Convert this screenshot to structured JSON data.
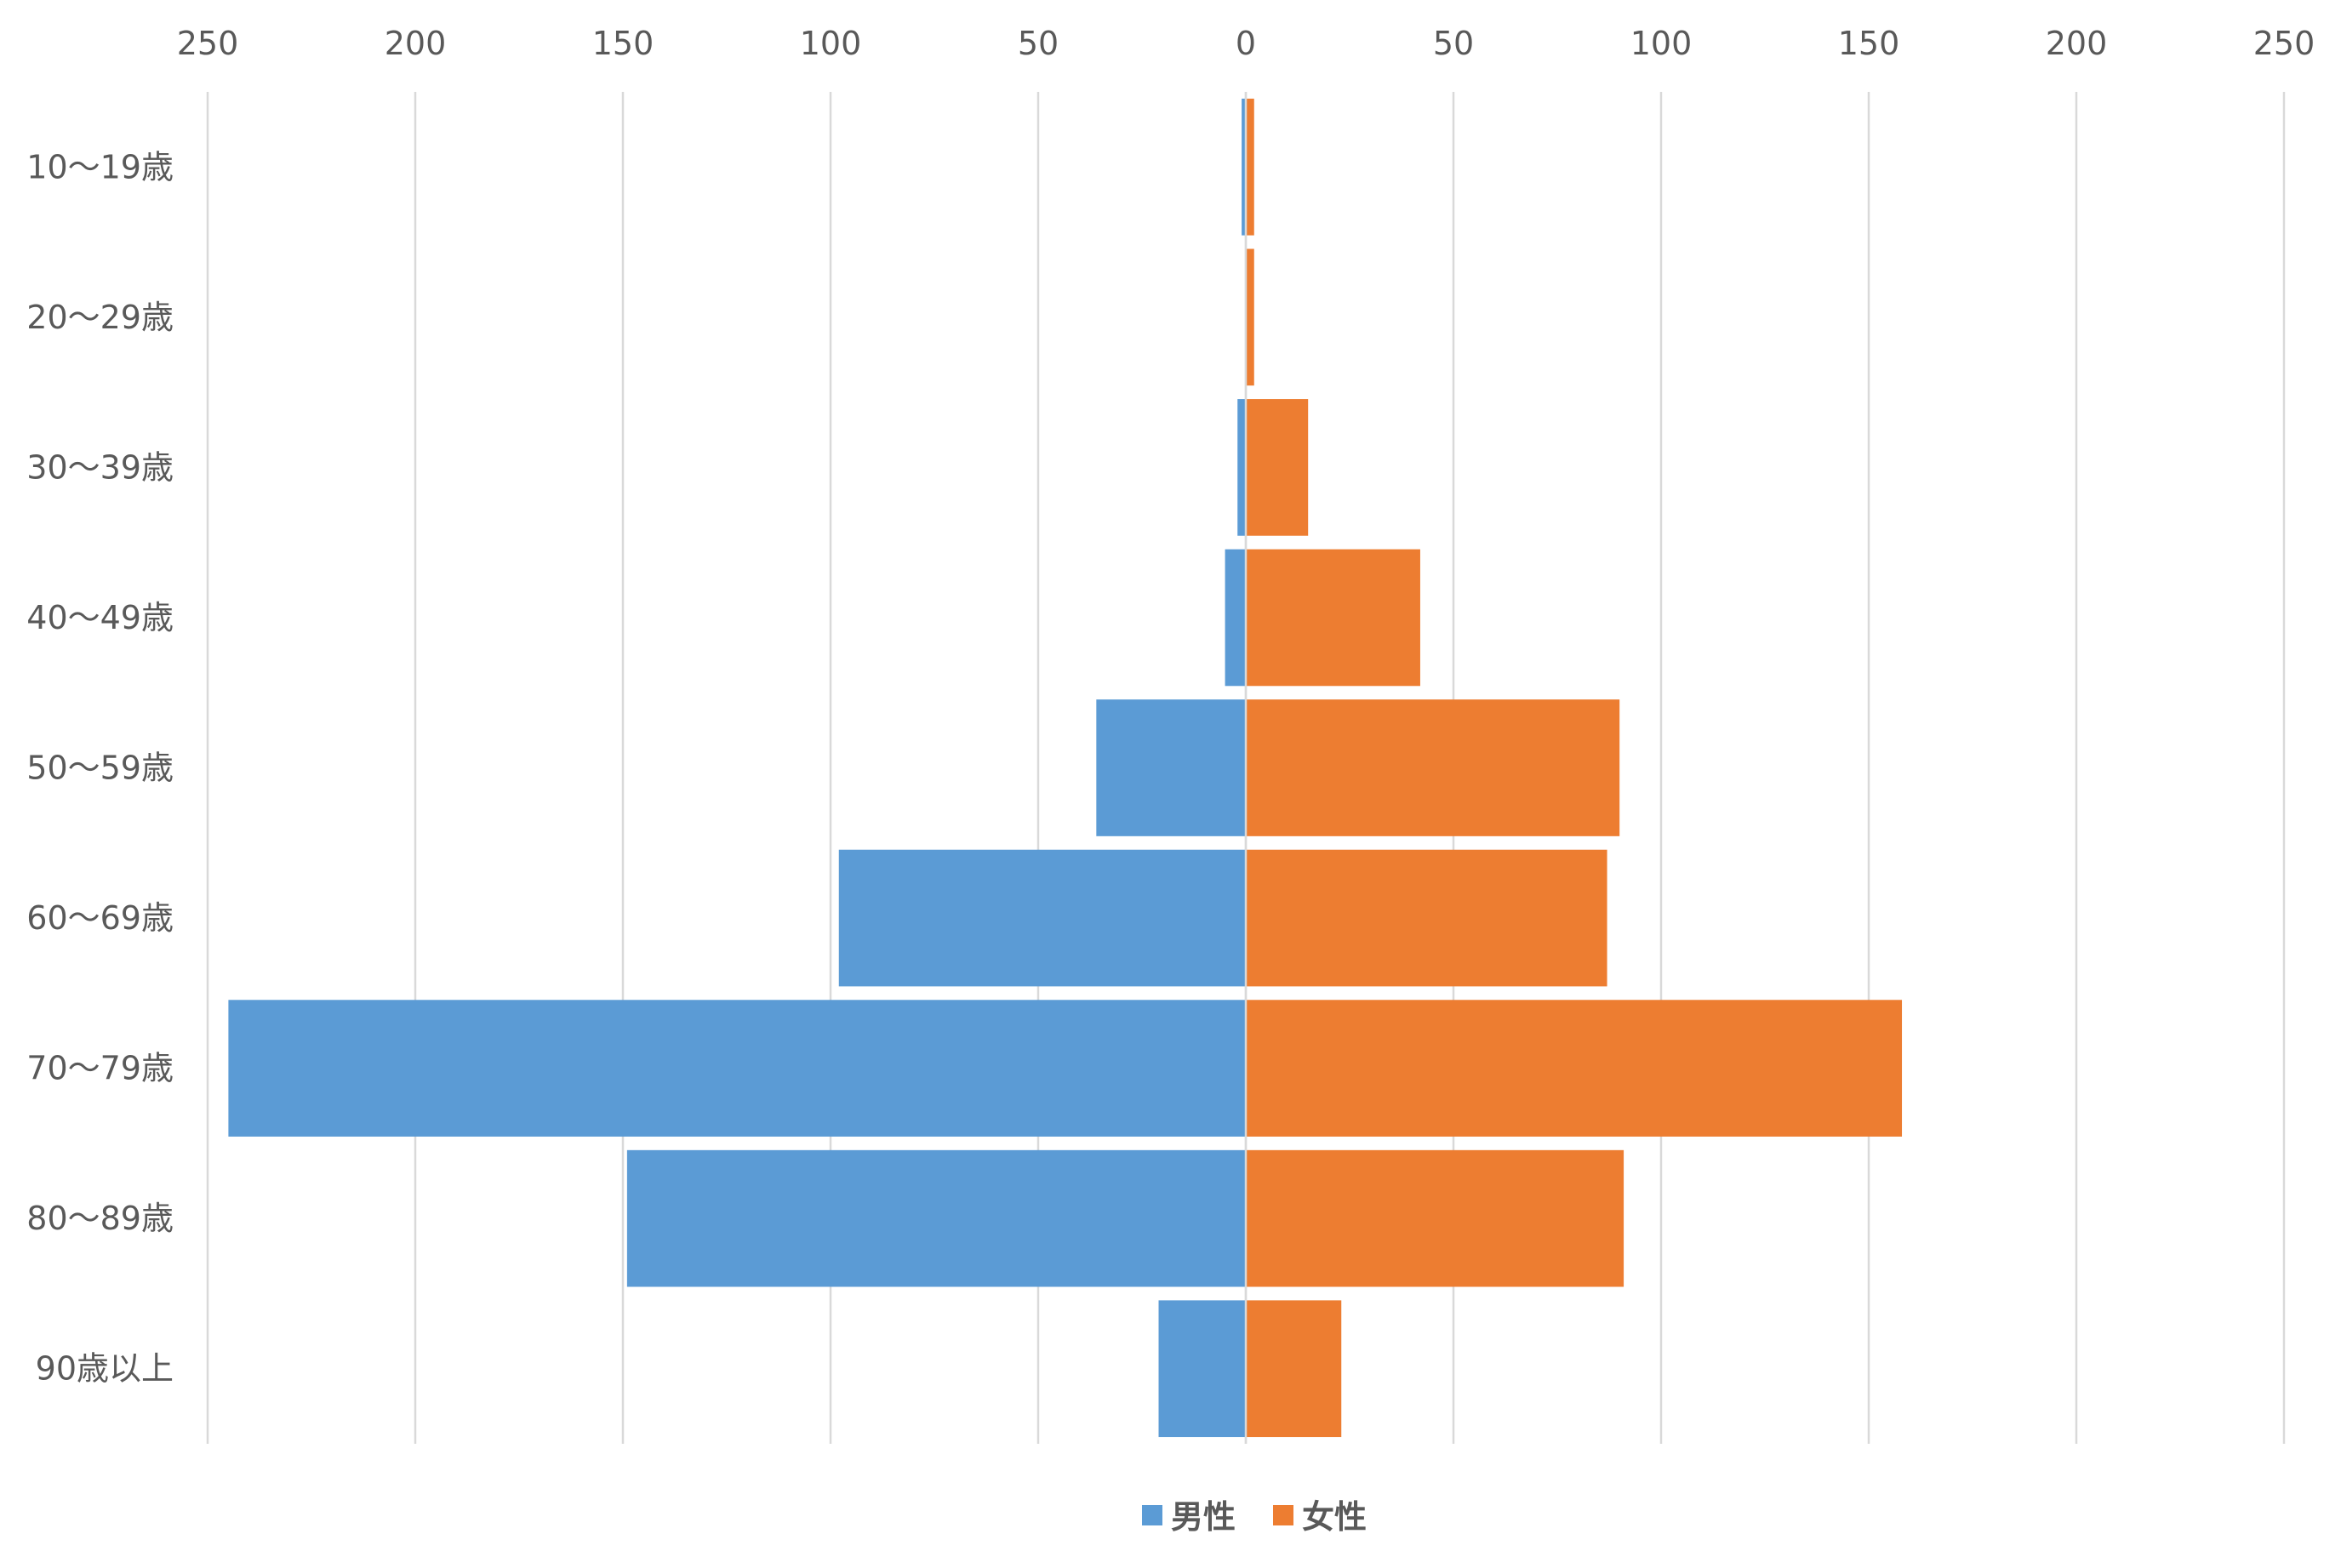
{
  "chart_data": {
    "type": "bar",
    "orientation": "horizontal",
    "layout": "population-pyramid",
    "title": "",
    "xlabel": "",
    "ylabel": "",
    "xlim": [
      -250,
      250
    ],
    "x_ticks": [
      -250,
      -200,
      -150,
      -100,
      -50,
      0,
      50,
      100,
      150,
      200,
      250
    ],
    "x_tick_labels": [
      "250",
      "200",
      "150",
      "100",
      "50",
      "0",
      "50",
      "100",
      "150",
      "200",
      "250"
    ],
    "x_axis_position": "top",
    "grid": "vertical",
    "legend": "bottom-center",
    "categories": [
      "10〜19歳",
      "20〜29歳",
      "30〜39歳",
      "40〜49歳",
      "50〜59歳",
      "60〜69歳",
      "70〜79歳",
      "80〜89歳",
      "90歳以上"
    ],
    "series": [
      {
        "name": "男性",
        "side": "left",
        "color": "#5b9bd5",
        "values": [
          1,
          0,
          2,
          5,
          36,
          98,
          245,
          149,
          21
        ]
      },
      {
        "name": "女性",
        "side": "right",
        "color": "#ed7d31",
        "values": [
          2,
          2,
          15,
          42,
          90,
          87,
          158,
          91,
          23
        ]
      }
    ]
  }
}
